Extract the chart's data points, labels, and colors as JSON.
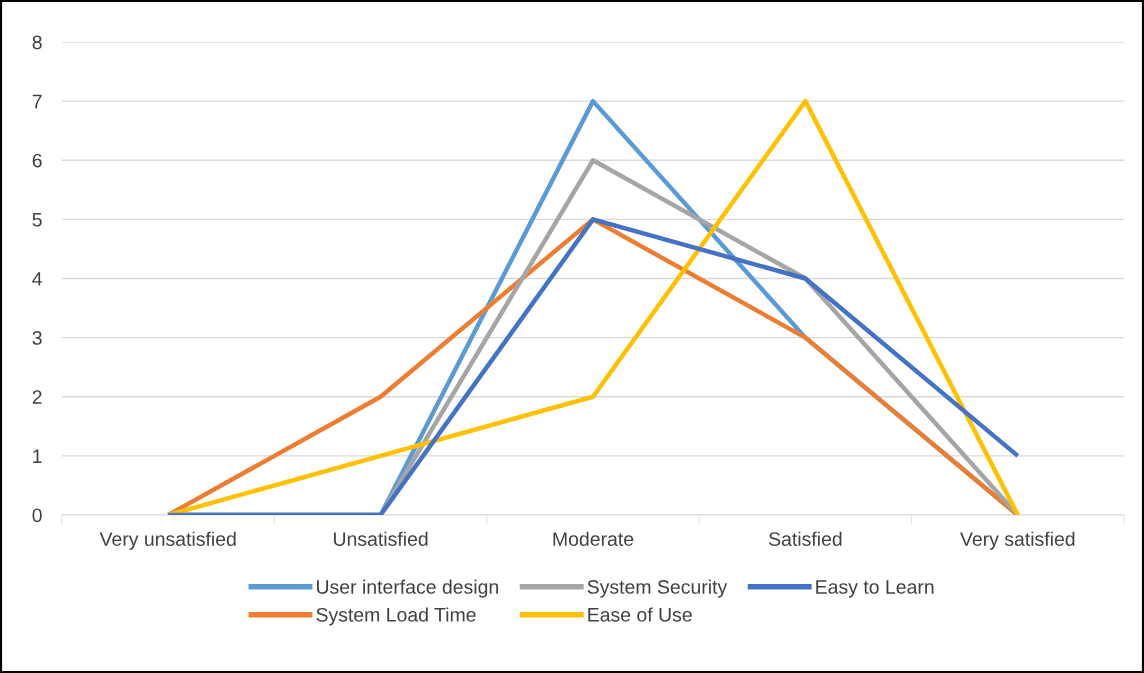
{
  "chart_data": {
    "type": "line",
    "categories": [
      "Very unsatisfied",
      "Unsatisfied",
      "Moderate",
      "Satisfied",
      "Very satisfied"
    ],
    "series": [
      {
        "name": "User interface design",
        "color": "#5b9bd5",
        "values": [
          0,
          0,
          7,
          3,
          0
        ]
      },
      {
        "name": "System Load Time",
        "color": "#ed7d31",
        "values": [
          0,
          2,
          5,
          3,
          0
        ]
      },
      {
        "name": "System Security",
        "color": "#a5a5a5",
        "values": [
          0,
          0,
          6,
          4,
          0
        ]
      },
      {
        "name": "Ease of Use",
        "color": "#ffc000",
        "values": [
          0,
          1,
          2,
          7,
          0
        ]
      },
      {
        "name": "Easy to Learn",
        "color": "#4472c4",
        "values": [
          0,
          0,
          5,
          4,
          1
        ]
      }
    ],
    "ylim": [
      0,
      8
    ],
    "yticks": [
      0,
      1,
      2,
      3,
      4,
      5,
      6,
      7,
      8
    ],
    "grid": "y",
    "legend": "bottom",
    "marker": "none",
    "line_style": "solid"
  }
}
